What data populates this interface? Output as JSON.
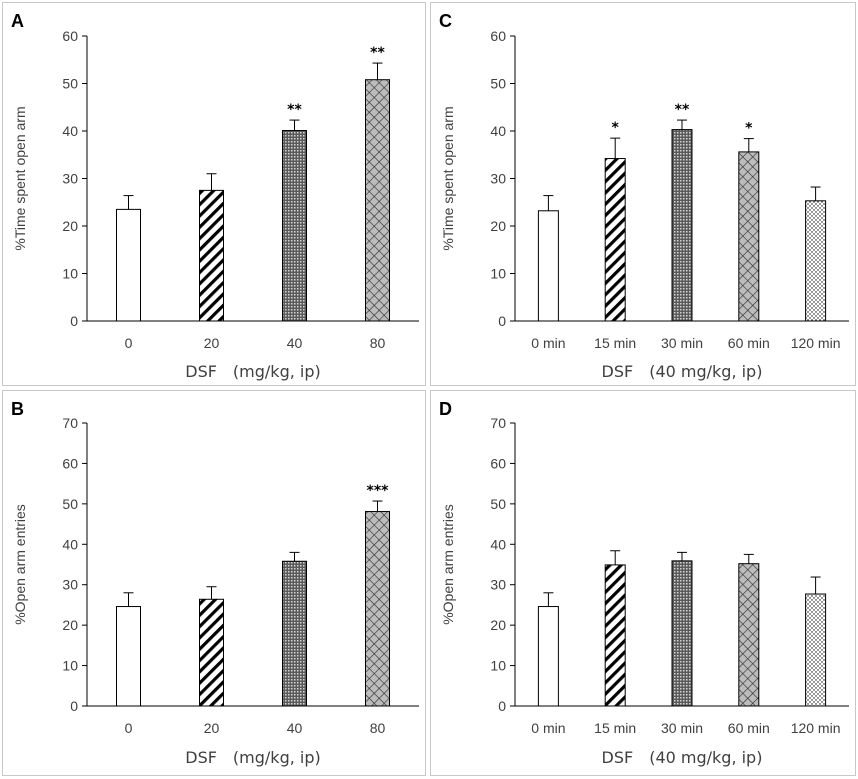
{
  "colors": {
    "bar_fill": "#ffffff",
    "bar_dark": "#333333",
    "bar_gray": "#bcbcbc",
    "axis": "#000000",
    "text": "#404040"
  },
  "chart_data": [
    {
      "panel": "A",
      "type": "bar",
      "ylabel": "%Time spent open arm",
      "xlabel": "DSF　(mg/kg, ip)",
      "ylim": [
        0,
        60
      ],
      "ytick_step": 10,
      "categories": [
        "0",
        "20",
        "40",
        "80"
      ],
      "values": [
        23.5,
        27.5,
        40.1,
        50.8
      ],
      "errors": [
        2.9,
        3.5,
        2.2,
        3.5
      ],
      "patterns": [
        "none",
        "diag",
        "dense",
        "cross"
      ],
      "significance": [
        "",
        "",
        "**",
        "**"
      ]
    },
    {
      "panel": "C",
      "type": "bar",
      "ylabel": "%Time spent open arm",
      "xlabel": "DSF　(40 mg/kg, ip)",
      "ylim": [
        0,
        60
      ],
      "ytick_step": 10,
      "categories": [
        "0 min",
        "15 min",
        "30 min",
        "60 min",
        "120 min"
      ],
      "values": [
        23.2,
        34.2,
        40.3,
        35.6,
        25.3
      ],
      "errors": [
        3.2,
        4.3,
        2.0,
        2.8,
        2.9
      ],
      "patterns": [
        "none",
        "diag",
        "dense",
        "cross",
        "dots"
      ],
      "significance": [
        "",
        "*",
        "**",
        "*",
        ""
      ]
    },
    {
      "panel": "B",
      "type": "bar",
      "ylabel": "%Open arm entries",
      "xlabel": "DSF　(mg/kg, ip)",
      "ylim": [
        0,
        70
      ],
      "ytick_step": 10,
      "categories": [
        "0",
        "20",
        "40",
        "80"
      ],
      "values": [
        24.6,
        26.4,
        35.8,
        48.1
      ],
      "errors": [
        3.4,
        3.1,
        2.2,
        2.6
      ],
      "patterns": [
        "none",
        "diag",
        "dense",
        "cross"
      ],
      "significance": [
        "",
        "",
        "",
        "***"
      ]
    },
    {
      "panel": "D",
      "type": "bar",
      "ylabel": "%Open arm entries",
      "xlabel": "DSF　(40 mg/kg, ip)",
      "ylim": [
        0,
        70
      ],
      "ytick_step": 10,
      "categories": [
        "0 min",
        "15 min",
        "30 min",
        "60 min",
        "120 min"
      ],
      "values": [
        24.6,
        34.9,
        35.9,
        35.2,
        27.7
      ],
      "errors": [
        3.4,
        3.5,
        2.1,
        2.3,
        4.2
      ],
      "patterns": [
        "none",
        "diag",
        "dense",
        "cross",
        "dots"
      ],
      "significance": [
        "",
        "",
        "",
        "",
        ""
      ]
    }
  ]
}
